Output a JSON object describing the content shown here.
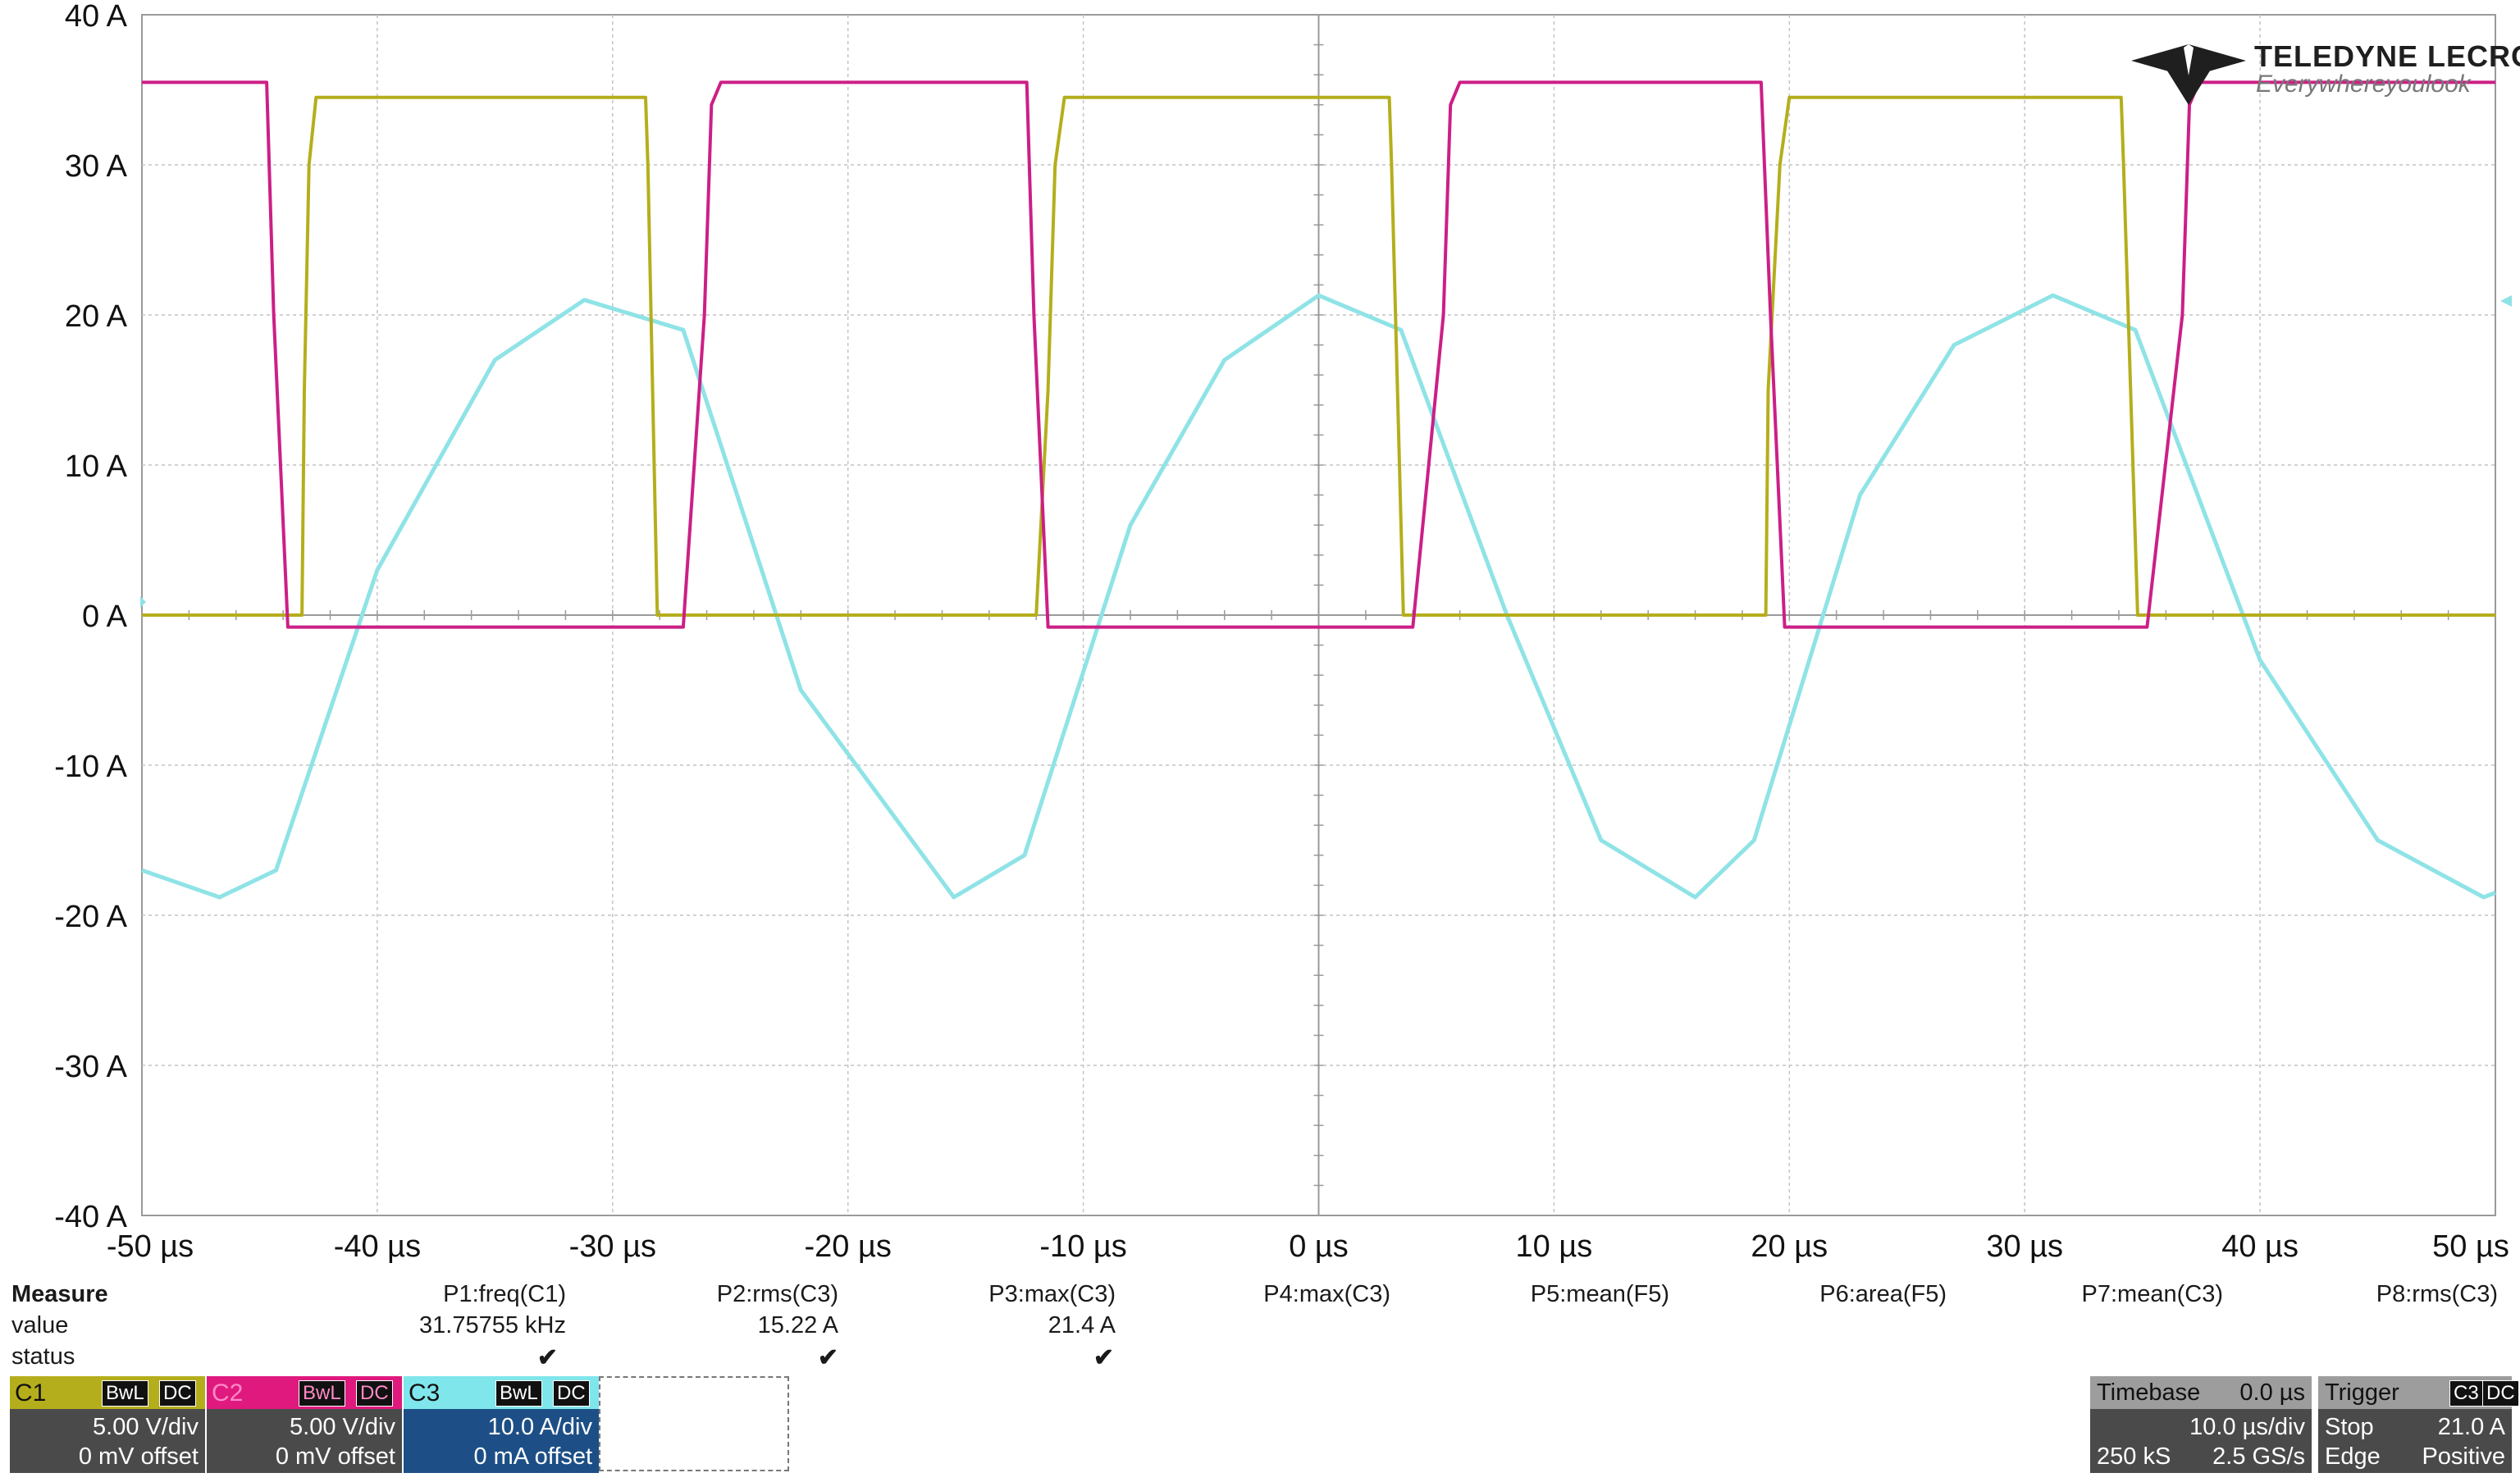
{
  "brand": {
    "name": "TELEDYNE LECROY",
    "tagline": "Everywhereyoulook"
  },
  "chart_data": {
    "type": "line",
    "title": "",
    "xlabel": "",
    "ylabel": "",
    "x_ticks": [
      "-50 µs",
      "-40 µs",
      "-30 µs",
      "-20 µs",
      "-10 µs",
      "0 µs",
      "10 µs",
      "20 µs",
      "30 µs",
      "40 µs",
      "50 µs"
    ],
    "y_ticks": [
      "40 A",
      "30 A",
      "20 A",
      "10 A",
      "0 A",
      "-10 A",
      "-20 A",
      "-30 A",
      "-40 A"
    ],
    "xlim": [
      -50,
      50
    ],
    "ylim": [
      -40,
      40
    ],
    "grid": true,
    "series": [
      {
        "name": "C1",
        "color": "#b5ae1c",
        "x": [
          -50,
          -43.2,
          -43.1,
          -42.9,
          -42.6,
          -28.6,
          -28.5,
          -28.1,
          -27.6,
          -26.1,
          -12.0,
          -11.5,
          -11.2,
          -10.8,
          3.0,
          3.1,
          3.6,
          5.0,
          19.0,
          19.1,
          19.6,
          20.0,
          34.1,
          34.2,
          34.8,
          36.0,
          50
        ],
        "y": [
          0,
          0,
          15,
          30,
          34.5,
          34.5,
          30,
          0,
          0,
          0,
          0,
          15,
          30,
          34.5,
          34.5,
          30,
          0,
          0,
          0,
          15,
          30,
          34.5,
          34.5,
          30,
          0,
          0,
          0
        ]
      },
      {
        "name": "C2",
        "color": "#cc1f86",
        "x": [
          -50,
          -44.7,
          -44.4,
          -43.8,
          -28,
          -27,
          -26.1,
          -25.8,
          -25.4,
          -12.4,
          -12.1,
          -11.5,
          3,
          4,
          5.3,
          5.6,
          6.0,
          18.8,
          19.2,
          19.8,
          34.5,
          35.2,
          36.7,
          37.0,
          37.4,
          50
        ],
        "y": [
          35.5,
          35.5,
          20,
          -0.8,
          -0.8,
          -0.8,
          20,
          34,
          35.5,
          35.5,
          20,
          -0.8,
          -0.8,
          -0.8,
          20,
          34,
          35.5,
          35.5,
          20,
          -0.8,
          -0.8,
          -0.8,
          20,
          34,
          35.5,
          35.5
        ]
      },
      {
        "name": "C3",
        "color": "#8fe3e6",
        "x": [
          -50,
          -46.7,
          -44.3,
          -40,
          -35,
          -31.2,
          -27,
          -22,
          -15.5,
          -12.5,
          -8,
          -4,
          0,
          3.5,
          8,
          12,
          16,
          18.5,
          23,
          27,
          31.2,
          34.7,
          40,
          45,
          49.5,
          50
        ],
        "y": [
          -17,
          -18.8,
          -17,
          3,
          17,
          21,
          19,
          -5,
          -18.8,
          -16,
          6,
          17,
          21.3,
          19,
          0,
          -15,
          -18.8,
          -15,
          8,
          18,
          21.3,
          19,
          -3,
          -15,
          -18.8,
          -18.5
        ]
      }
    ]
  },
  "measure": {
    "header": "Measure",
    "row_value": "value",
    "row_status": "status",
    "params": [
      {
        "name": "P1:freq(C1)",
        "value": "31.75755 kHz",
        "status": "✔"
      },
      {
        "name": "P2:rms(C3)",
        "value": "15.22 A",
        "status": "✔"
      },
      {
        "name": "P3:max(C3)",
        "value": "21.4 A",
        "status": "✔"
      },
      {
        "name": "P4:max(C3)",
        "value": "",
        "status": ""
      },
      {
        "name": "P5:mean(F5)",
        "value": "",
        "status": ""
      },
      {
        "name": "P6:area(F5)",
        "value": "",
        "status": ""
      },
      {
        "name": "P7:mean(C3)",
        "value": "",
        "status": ""
      },
      {
        "name": "P8:rms(C3)",
        "value": "",
        "status": ""
      }
    ]
  },
  "channels": [
    {
      "name": "C1",
      "bwl": "BwL",
      "coupling": "DC",
      "scale": "5.00 V/div",
      "offset": "0 mV offset",
      "color": "#b5ae1c"
    },
    {
      "name": "C2",
      "bwl": "BwL",
      "coupling": "DC",
      "scale": "5.00 V/div",
      "offset": "0 mV offset",
      "color": "#e0197f"
    },
    {
      "name": "C3",
      "bwl": "BwL",
      "coupling": "DC",
      "scale": "10.0 A/div",
      "offset": "0 mA offset",
      "color": "#7fe6ec"
    }
  ],
  "timebase": {
    "label": "Timebase",
    "delay": "0.0 µs",
    "scale": "10.0 µs/div",
    "samples": "250 kS",
    "rate": "2.5 GS/s"
  },
  "trigger": {
    "label": "Trigger",
    "source": "C3",
    "coupling": "DC",
    "mode": "Stop",
    "level": "21.0 A",
    "type": "Edge",
    "slope": "Positive"
  }
}
